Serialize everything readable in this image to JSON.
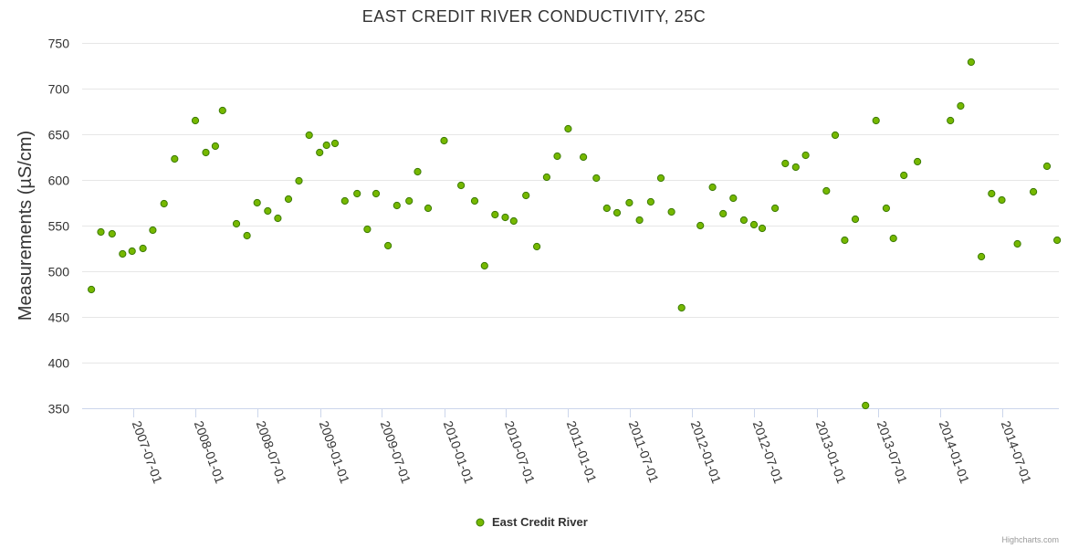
{
  "chart_data": {
    "type": "scatter",
    "title": "EAST CREDIT RIVER CONDUCTIVITY, 25C",
    "ylabel": "Measurements (µS/cm)",
    "xlabel": "",
    "ylim": [
      350,
      750
    ],
    "yticks": [
      350,
      400,
      450,
      500,
      550,
      600,
      650,
      700,
      750
    ],
    "xlim": [
      "2007-02-01",
      "2014-12-15"
    ],
    "xticks": [
      "2007-07-01",
      "2008-01-01",
      "2008-07-01",
      "2009-01-01",
      "2009-07-01",
      "2010-01-01",
      "2010-07-01",
      "2011-01-01",
      "2011-07-01",
      "2012-01-01",
      "2012-07-01",
      "2013-01-01",
      "2013-07-01",
      "2014-01-01",
      "2014-07-01"
    ],
    "grid": true,
    "legend": "bottom-center",
    "marker_color": "#76b800",
    "marker_edge_color": "#3a7a00",
    "series": [
      {
        "name": "East Credit River",
        "points": [
          [
            "2007-02-28",
            480
          ],
          [
            "2007-03-28",
            543
          ],
          [
            "2007-04-30",
            541
          ],
          [
            "2007-05-31",
            519
          ],
          [
            "2007-06-28",
            522
          ],
          [
            "2007-07-30",
            525
          ],
          [
            "2007-08-28",
            545
          ],
          [
            "2007-09-30",
            574
          ],
          [
            "2007-10-31",
            623
          ],
          [
            "2007-12-31",
            665
          ],
          [
            "2008-01-31",
            630
          ],
          [
            "2008-02-28",
            637
          ],
          [
            "2008-03-20",
            676
          ],
          [
            "2008-04-30",
            552
          ],
          [
            "2008-05-31",
            539
          ],
          [
            "2008-06-30",
            575
          ],
          [
            "2008-07-31",
            566
          ],
          [
            "2008-08-30",
            558
          ],
          [
            "2008-09-30",
            579
          ],
          [
            "2008-10-31",
            599
          ],
          [
            "2008-11-30",
            649
          ],
          [
            "2008-12-31",
            630
          ],
          [
            "2009-01-20",
            638
          ],
          [
            "2009-02-14",
            640
          ],
          [
            "2009-03-15",
            577
          ],
          [
            "2009-04-20",
            585
          ],
          [
            "2009-05-20",
            546
          ],
          [
            "2009-06-15",
            585
          ],
          [
            "2009-07-20",
            528
          ],
          [
            "2009-08-15",
            572
          ],
          [
            "2009-09-20",
            577
          ],
          [
            "2009-10-15",
            609
          ],
          [
            "2009-11-15",
            569
          ],
          [
            "2010-01-01",
            643
          ],
          [
            "2010-02-20",
            594
          ],
          [
            "2010-04-01",
            577
          ],
          [
            "2010-04-30",
            506
          ],
          [
            "2010-05-31",
            562
          ],
          [
            "2010-06-30",
            559
          ],
          [
            "2010-07-25",
            555
          ],
          [
            "2010-08-30",
            583
          ],
          [
            "2010-10-01",
            527
          ],
          [
            "2010-10-30",
            603
          ],
          [
            "2010-11-30",
            626
          ],
          [
            "2011-01-01",
            656
          ],
          [
            "2011-02-15",
            625
          ],
          [
            "2011-03-25",
            602
          ],
          [
            "2011-04-25",
            569
          ],
          [
            "2011-05-25",
            564
          ],
          [
            "2011-06-30",
            575
          ],
          [
            "2011-07-30",
            556
          ],
          [
            "2011-09-01",
            576
          ],
          [
            "2011-10-01",
            602
          ],
          [
            "2011-11-01",
            565
          ],
          [
            "2011-12-01",
            460
          ],
          [
            "2012-01-25",
            550
          ],
          [
            "2012-03-01",
            592
          ],
          [
            "2012-04-01",
            563
          ],
          [
            "2012-05-01",
            580
          ],
          [
            "2012-06-01",
            556
          ],
          [
            "2012-07-01",
            551
          ],
          [
            "2012-07-25",
            547
          ],
          [
            "2012-09-01",
            569
          ],
          [
            "2012-10-01",
            618
          ],
          [
            "2012-11-01",
            614
          ],
          [
            "2012-11-30",
            627
          ],
          [
            "2013-01-30",
            588
          ],
          [
            "2013-02-25",
            649
          ],
          [
            "2013-03-25",
            534
          ],
          [
            "2013-04-25",
            557
          ],
          [
            "2013-05-25",
            353
          ],
          [
            "2013-06-25",
            665
          ],
          [
            "2013-07-25",
            569
          ],
          [
            "2013-08-15",
            536
          ],
          [
            "2013-09-15",
            605
          ],
          [
            "2013-10-25",
            620
          ],
          [
            "2014-01-30",
            665
          ],
          [
            "2014-03-01",
            681
          ],
          [
            "2014-04-01",
            729
          ],
          [
            "2014-05-01",
            516
          ],
          [
            "2014-05-31",
            585
          ],
          [
            "2014-06-30",
            578
          ],
          [
            "2014-08-15",
            530
          ],
          [
            "2014-10-01",
            587
          ],
          [
            "2014-11-10",
            615
          ],
          [
            "2014-12-10",
            534
          ]
        ]
      }
    ]
  },
  "credits": "Highcharts.com"
}
